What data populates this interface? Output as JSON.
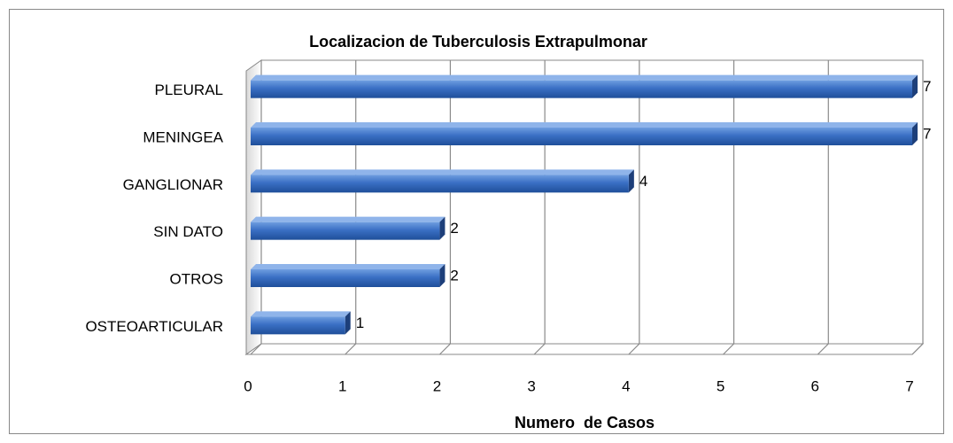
{
  "chart_data": {
    "type": "bar",
    "orientation": "horizontal",
    "title": "Localizacion de Tuberculosis Extrapulmonar",
    "x_label": "Numero  de Casos",
    "categories": [
      "PLEURAL",
      "MENINGEA",
      "GANGLIONAR",
      "SIN DATO",
      "OTROS",
      "OSTEOARTICULAR"
    ],
    "values": [
      7,
      7,
      4,
      2,
      2,
      1
    ],
    "color": "#3a6fc4",
    "xlim": [
      0,
      7
    ],
    "xticks": [
      0,
      1,
      2,
      3,
      4,
      5,
      6,
      7
    ],
    "grid": true
  }
}
